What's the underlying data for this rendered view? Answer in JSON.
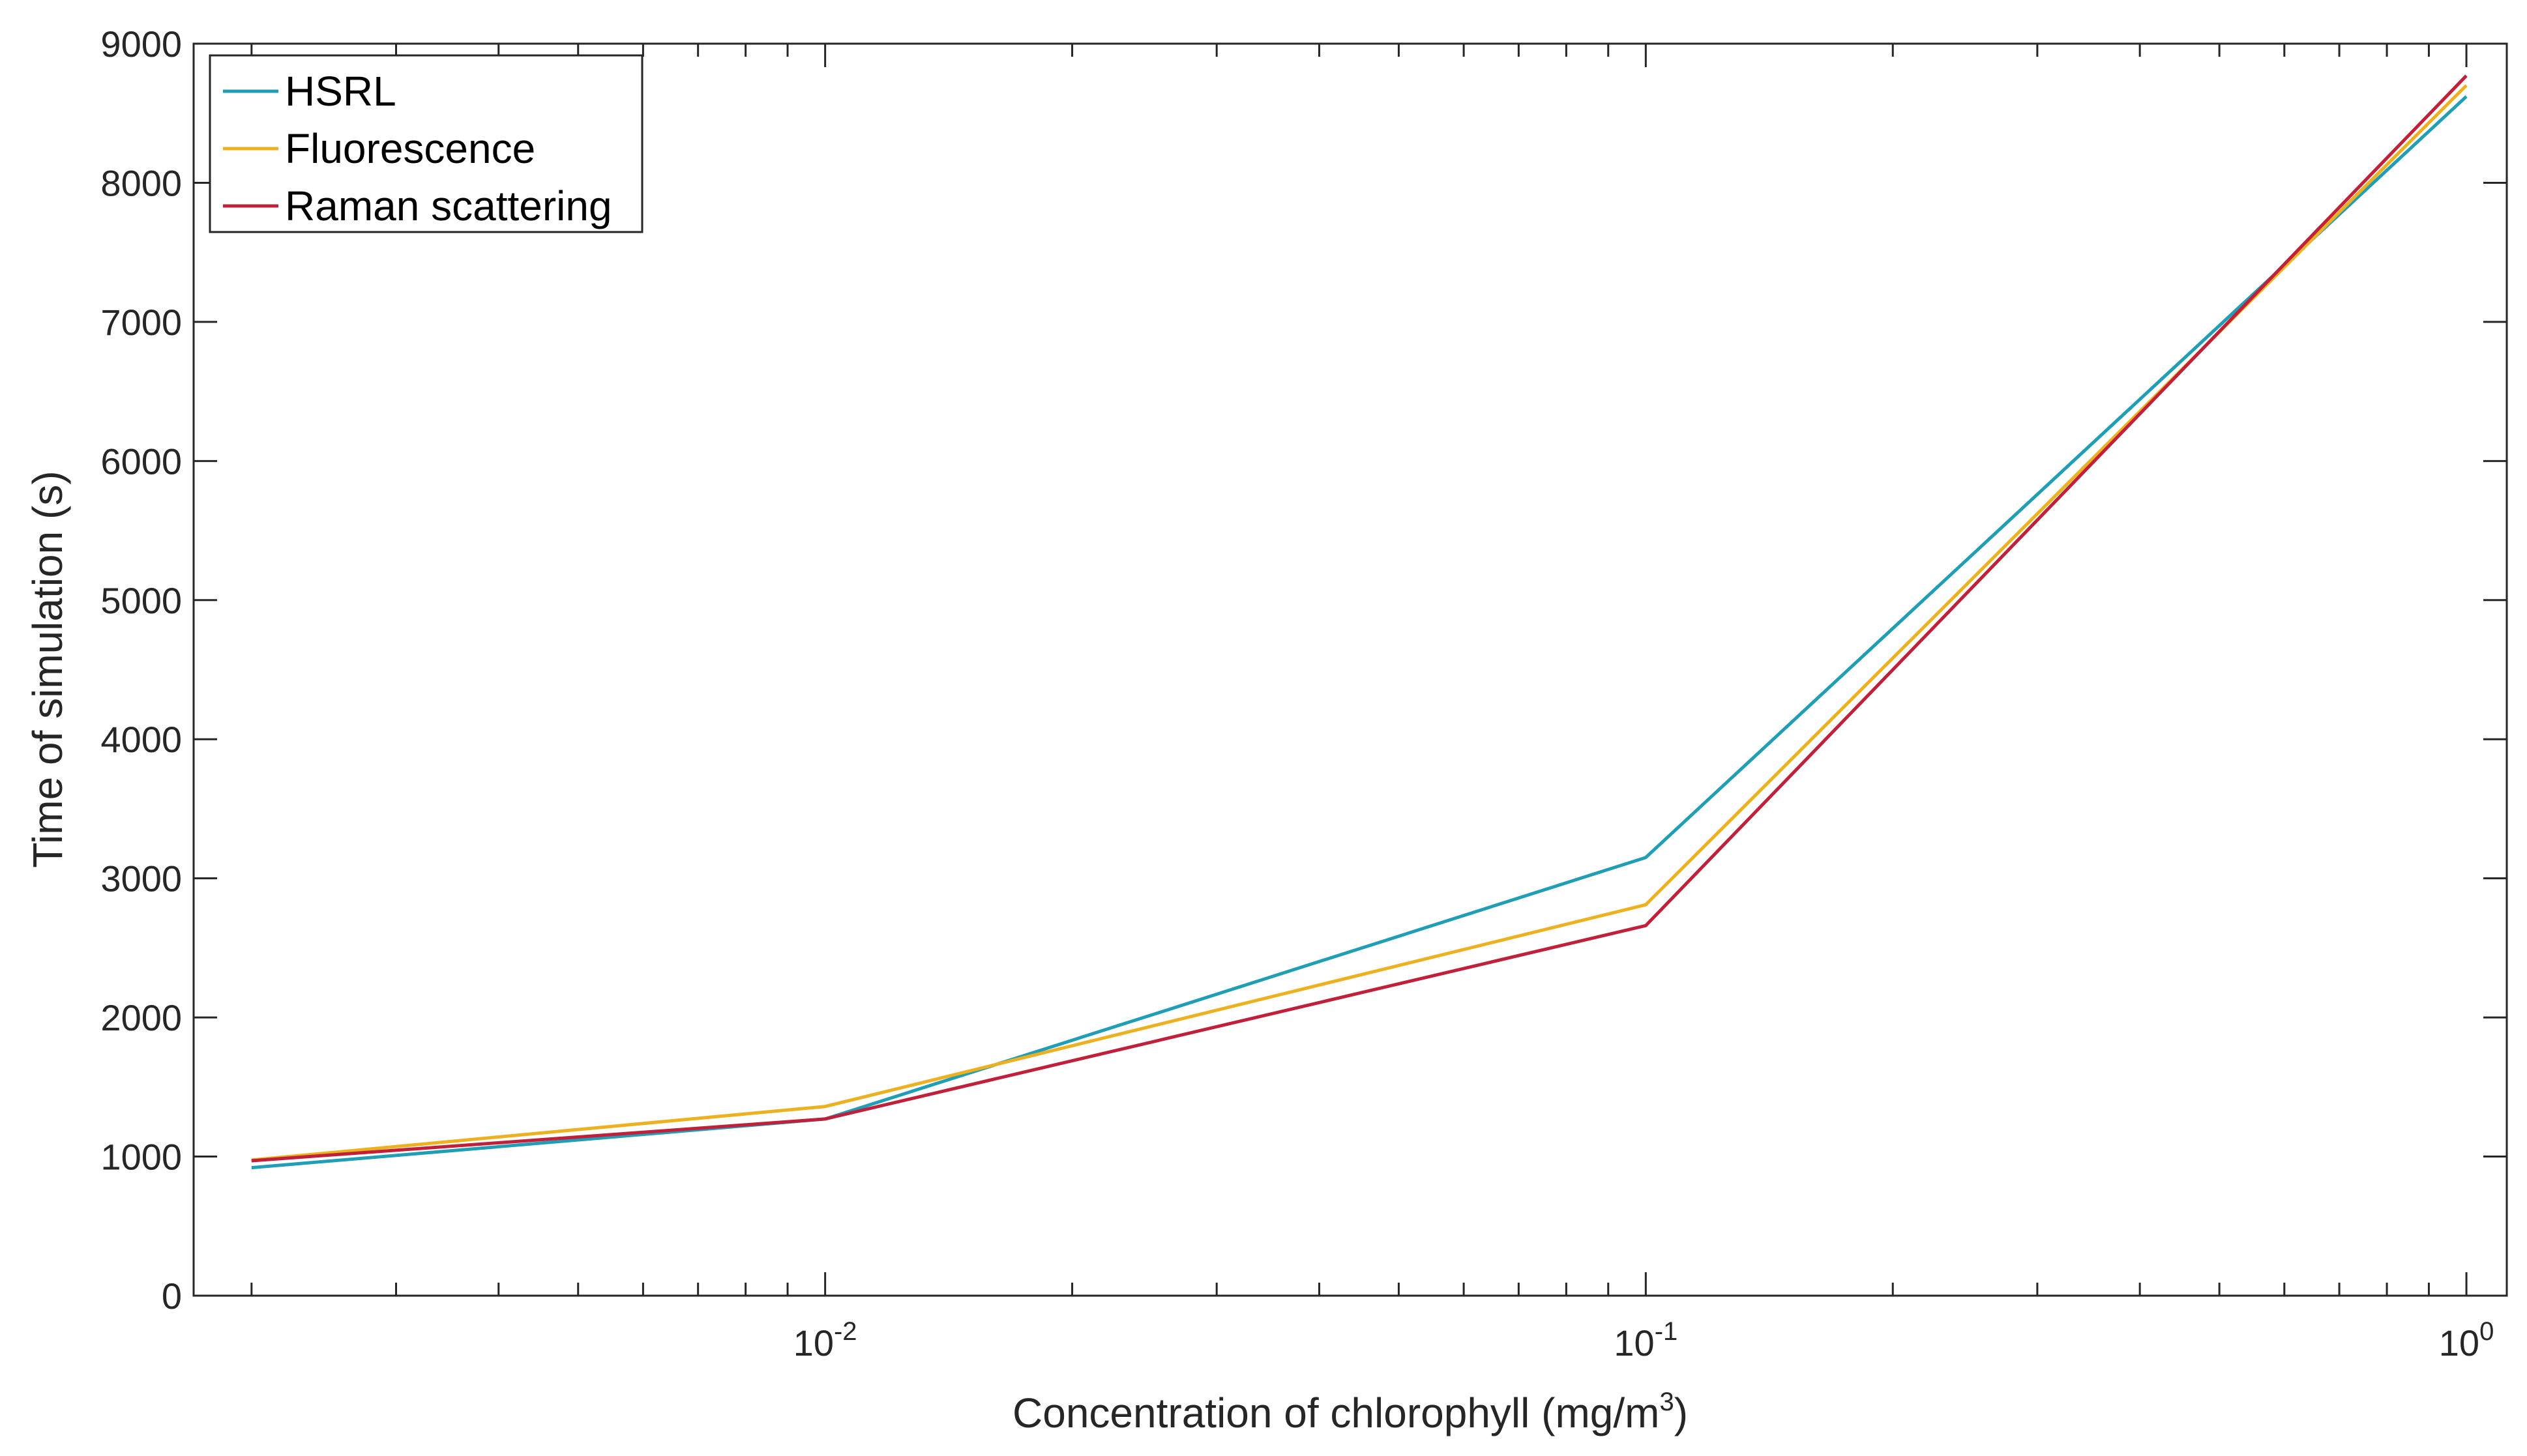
{
  "chart_data": {
    "type": "line",
    "x_scale": "log",
    "x": [
      0.002,
      0.01,
      0.1,
      1
    ],
    "series": [
      {
        "name": "HSRL",
        "color": "#1f9eb5",
        "values": [
          920,
          1270,
          3150,
          8620
        ]
      },
      {
        "name": "Fluorescence",
        "color": "#edb120",
        "values": [
          975,
          1360,
          2810,
          8700
        ]
      },
      {
        "name": "Raman scattering",
        "color": "#c0203a",
        "values": [
          970,
          1270,
          2660,
          8770
        ]
      }
    ],
    "xlim": [
      0.0017,
      1.12
    ],
    "ylim": [
      0,
      9000
    ],
    "y_ticks": [
      0,
      1000,
      2000,
      3000,
      4000,
      5000,
      6000,
      7000,
      8000,
      9000
    ],
    "y_tick_labels": [
      "0",
      "1000",
      "2000",
      "3000",
      "4000",
      "5000",
      "6000",
      "7000",
      "8000",
      "9000"
    ],
    "x_major_ticks": [
      0.01,
      0.1,
      1
    ],
    "x_tick_labels": [
      {
        "base": "10",
        "exp": "-2"
      },
      {
        "base": "10",
        "exp": "-1"
      },
      {
        "base": "10",
        "exp": "0"
      }
    ],
    "xlabel": "Concentration of chlorophyll (mg/m",
    "xlabel_sup": "3",
    "xlabel_suffix": ")",
    "ylabel": "Time of simulation (s)",
    "legend_position": "top-left",
    "grid": false
  }
}
